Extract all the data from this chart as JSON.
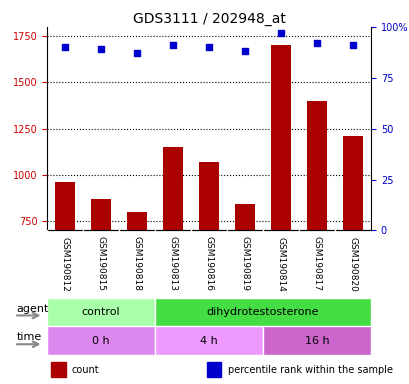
{
  "title": "GDS3111 / 202948_at",
  "samples": [
    "GSM190812",
    "GSM190815",
    "GSM190818",
    "GSM190813",
    "GSM190816",
    "GSM190819",
    "GSM190814",
    "GSM190817",
    "GSM190820"
  ],
  "counts": [
    960,
    870,
    800,
    1150,
    1070,
    840,
    1700,
    1400,
    1210
  ],
  "percentile_ranks": [
    90,
    89,
    87,
    91,
    90,
    88,
    97,
    92,
    91
  ],
  "ylim_left": [
    700,
    1800
  ],
  "ylim_right": [
    0,
    100
  ],
  "yticks_left": [
    750,
    1000,
    1250,
    1500,
    1750
  ],
  "yticks_right": [
    0,
    25,
    50,
    75,
    100
  ],
  "ytick_labels_right": [
    "0",
    "25",
    "50",
    "75",
    "100%"
  ],
  "bar_color": "#aa0000",
  "dot_color": "#0000cc",
  "bar_width": 0.55,
  "agent_groups": [
    {
      "label": "control",
      "start": 0,
      "end": 3,
      "color": "#aaffaa"
    },
    {
      "label": "dihydrotestosterone",
      "start": 3,
      "end": 9,
      "color": "#44dd44"
    }
  ],
  "time_groups": [
    {
      "label": "0 h",
      "start": 0,
      "end": 3,
      "color": "#dd88ee"
    },
    {
      "label": "4 h",
      "start": 3,
      "end": 6,
      "color": "#ee99ff"
    },
    {
      "label": "16 h",
      "start": 6,
      "end": 9,
      "color": "#cc66cc"
    }
  ],
  "background_color": "#ffffff",
  "grid_color": "#000000",
  "tick_color_left": "#cc0000",
  "tick_color_right": "#0000cc",
  "legend_items": [
    {
      "label": "count",
      "color": "#aa0000"
    },
    {
      "label": "percentile rank within the sample",
      "color": "#0000cc"
    }
  ],
  "agent_label": "agent",
  "time_label": "time",
  "panel_bg": "#cccccc"
}
